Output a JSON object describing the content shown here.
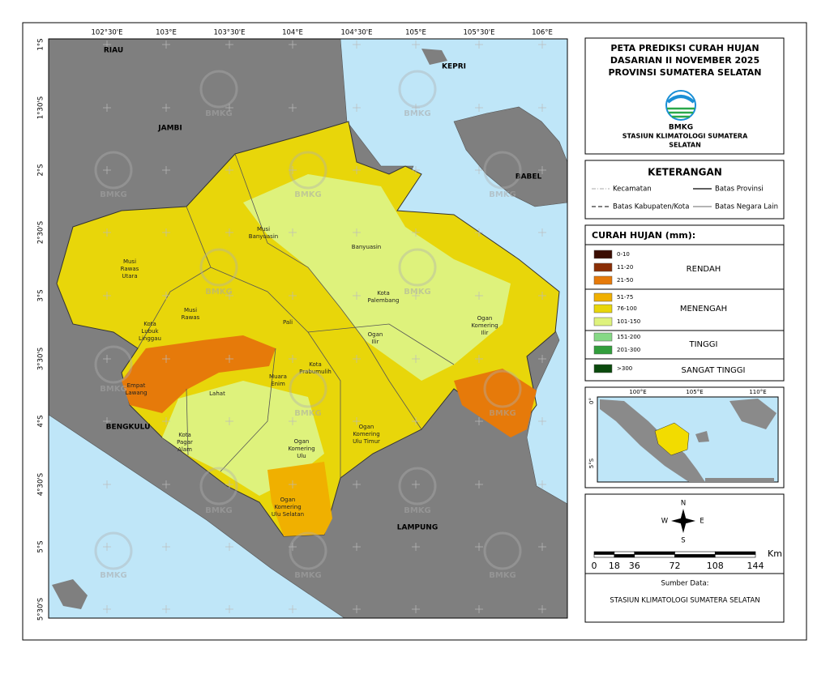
{
  "title": {
    "lines": [
      "PETA PREDIKSI CURAH HUJAN",
      "DASARIAN II NOVEMBER 2025",
      "PROVINSI SUMATERA SELATAN"
    ],
    "logo_text": "BMKG",
    "station": [
      "STASIUN KLIMATOLOGI SUMATERA",
      "SELATAN"
    ]
  },
  "map": {
    "lon_labels": [
      "102°30'E",
      "103°E",
      "103°30'E",
      "104°E",
      "104°30'E",
      "105°E",
      "105°30'E",
      "106°E"
    ],
    "lat_labels": [
      "1°S",
      "1°30'S",
      "2°S",
      "2°30'S",
      "3°S",
      "3°30'S",
      "4°S",
      "4°30'S",
      "5°S",
      "5°30'S"
    ],
    "regions": [
      "RIAU",
      "JAMBI",
      "KEPRI",
      "BABEL",
      "BENGKULU",
      "LAMPUNG"
    ],
    "districts": [
      [
        "Musi",
        "Banyuasin"
      ],
      [
        "Banyuasin"
      ],
      [
        "Musi",
        "Rawas",
        "Utara"
      ],
      [
        "Musi",
        "Rawas"
      ],
      [
        "Kota",
        "Lubuk",
        "Linggau"
      ],
      [
        "Pali"
      ],
      [
        "Kota",
        "Palembang"
      ],
      [
        "Ogan",
        "Ilir"
      ],
      [
        "Ogan",
        "Komering",
        "Ilir"
      ],
      [
        "Kota",
        "Prabumulih"
      ],
      [
        "Muara",
        "Enim"
      ],
      [
        "Empat",
        "Lawang"
      ],
      [
        "Lahat"
      ],
      [
        "Kota",
        "Pagar",
        "Alam"
      ],
      [
        "Ogan",
        "Komering",
        "Ulu"
      ],
      [
        "Ogan",
        "Komering",
        "Ulu Timur"
      ],
      [
        "Ogan",
        "Komering",
        "Ulu Selatan"
      ]
    ],
    "watermark": "BMKG"
  },
  "legend_lines": {
    "title": "KETERANGAN",
    "items": [
      "Kecamatan",
      "Batas Provinsi",
      "Batas Kabupaten/Kota",
      "Batas Negara Lain"
    ]
  },
  "rain_legend": {
    "title": "CURAH HUJAN (mm):",
    "classes": [
      {
        "label": "0-10",
        "color": "#3b0d02"
      },
      {
        "label": "11-20",
        "color": "#8a2e06"
      },
      {
        "label": "21-50",
        "color": "#e67a0a"
      },
      {
        "label": "51-75",
        "color": "#f0b000"
      },
      {
        "label": "76-100",
        "color": "#e8d60a"
      },
      {
        "label": "101-150",
        "color": "#def27c"
      },
      {
        "label": "151-200",
        "color": "#86d986"
      },
      {
        "label": "201-300",
        "color": "#329e3c"
      },
      {
        "label": ">300",
        "color": "#0b4a0d"
      }
    ],
    "groups": [
      "RENDAH",
      "MENENGAH",
      "TINGGI",
      "SANGAT TINGGI"
    ]
  },
  "inset": {
    "lon_labels": [
      "100°E",
      "105°E",
      "110°E"
    ],
    "lat_labels": [
      "0°",
      "5°S"
    ]
  },
  "compass": [
    "N",
    "W",
    "E",
    "S"
  ],
  "scale": {
    "ticks": [
      0,
      18,
      36,
      72,
      108,
      144
    ],
    "unit": "Km"
  },
  "source": {
    "label": "Sumber Data:",
    "text": "STASIUN KLIMATOLOGI SUMATERA SELATAN"
  }
}
